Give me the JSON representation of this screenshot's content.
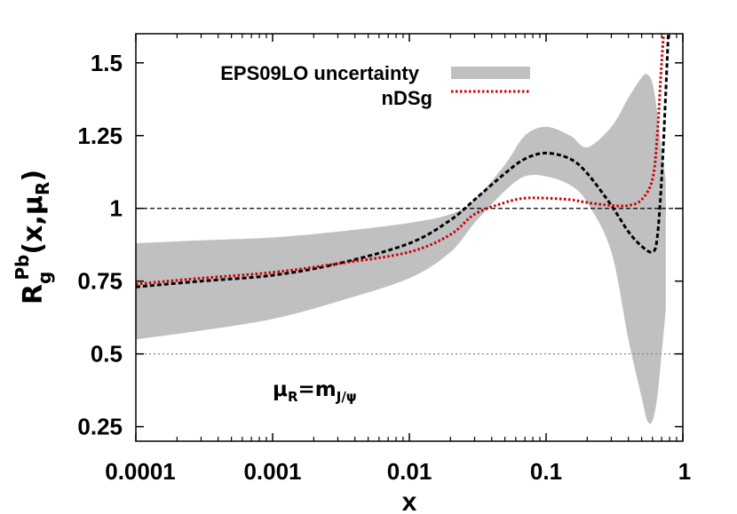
{
  "chart_data": {
    "type": "line",
    "xscale": "log",
    "xlim": [
      0.0001,
      1
    ],
    "ylim": [
      0.2,
      1.6
    ],
    "x_ticks": [
      {
        "value": 0.0001,
        "label": "0.0001"
      },
      {
        "value": 0.001,
        "label": "0.001"
      },
      {
        "value": 0.01,
        "label": "0.01"
      },
      {
        "value": 0.1,
        "label": "0.1"
      },
      {
        "value": 1,
        "label": "1"
      }
    ],
    "y_ticks": [
      {
        "value": 0.25,
        "label": "0.25"
      },
      {
        "value": 0.5,
        "label": "0.5"
      },
      {
        "value": 0.75,
        "label": "0.75"
      },
      {
        "value": 1,
        "label": "1"
      },
      {
        "value": 1.25,
        "label": "1.25"
      },
      {
        "value": 1.5,
        "label": "1.5"
      }
    ],
    "xlabel": "x",
    "ylabel": {
      "base": "R",
      "sub": "g",
      "sup": "Pb",
      "args": "(x,μ",
      "args_sub": "R",
      "args_close": ")"
    },
    "annotation": {
      "base": "μ",
      "sub": "R",
      "eq": "=m",
      "eq_sub": "J/ψ"
    },
    "reference_lines": [
      {
        "y": 1,
        "style": "dashed",
        "color": "#000000"
      },
      {
        "y": 0.5,
        "style": "dotted",
        "color": "#888888"
      }
    ],
    "legend_position": "top",
    "legend": [
      {
        "label": "EPS09LO uncertainty",
        "type": "band",
        "color": "#c0c0c0"
      },
      {
        "label": "nDSg",
        "type": "line",
        "style": "dotted",
        "color": "#cc0000"
      }
    ],
    "band": {
      "name": "EPS09LO uncertainty",
      "color": "#c0c0c0",
      "x": [
        0.0001,
        0.0003,
        0.001,
        0.003,
        0.01,
        0.02,
        0.03,
        0.05,
        0.07,
        0.1,
        0.15,
        0.2,
        0.3,
        0.4,
        0.5,
        0.55,
        0.6,
        0.65,
        0.7,
        0.75
      ],
      "upper": [
        0.88,
        0.89,
        0.9,
        0.92,
        0.95,
        0.98,
        1.03,
        1.15,
        1.25,
        1.28,
        1.25,
        1.21,
        1.28,
        1.38,
        1.45,
        1.46,
        1.43,
        1.33,
        1.2,
        1.1
      ],
      "lower": [
        0.55,
        0.58,
        0.62,
        0.68,
        0.76,
        0.85,
        0.95,
        1.06,
        1.11,
        1.11,
        1.08,
        1.02,
        0.85,
        0.55,
        0.35,
        0.27,
        0.27,
        0.35,
        0.5,
        0.65
      ]
    },
    "series": [
      {
        "style": "dashed",
        "color": "#000000",
        "x": [
          0.0001,
          0.0003,
          0.001,
          0.003,
          0.01,
          0.02,
          0.03,
          0.05,
          0.07,
          0.1,
          0.15,
          0.2,
          0.3,
          0.4,
          0.5,
          0.6,
          0.65,
          0.7,
          0.75,
          0.8
        ],
        "values": [
          0.73,
          0.75,
          0.77,
          0.81,
          0.88,
          0.96,
          1.03,
          1.12,
          1.17,
          1.19,
          1.17,
          1.12,
          1.01,
          0.92,
          0.87,
          0.85,
          0.9,
          1.1,
          1.4,
          1.7
        ]
      },
      {
        "name": "nDSg",
        "style": "dotted",
        "color": "#cc0000",
        "x": [
          0.0001,
          0.0003,
          0.001,
          0.003,
          0.01,
          0.02,
          0.03,
          0.05,
          0.07,
          0.1,
          0.15,
          0.2,
          0.3,
          0.4,
          0.5,
          0.6,
          0.65,
          0.7,
          0.75
        ],
        "values": [
          0.74,
          0.76,
          0.78,
          0.81,
          0.85,
          0.91,
          0.98,
          1.02,
          1.035,
          1.035,
          1.03,
          1.02,
          1.01,
          1.01,
          1.03,
          1.1,
          1.25,
          1.5,
          1.7
        ]
      }
    ]
  }
}
